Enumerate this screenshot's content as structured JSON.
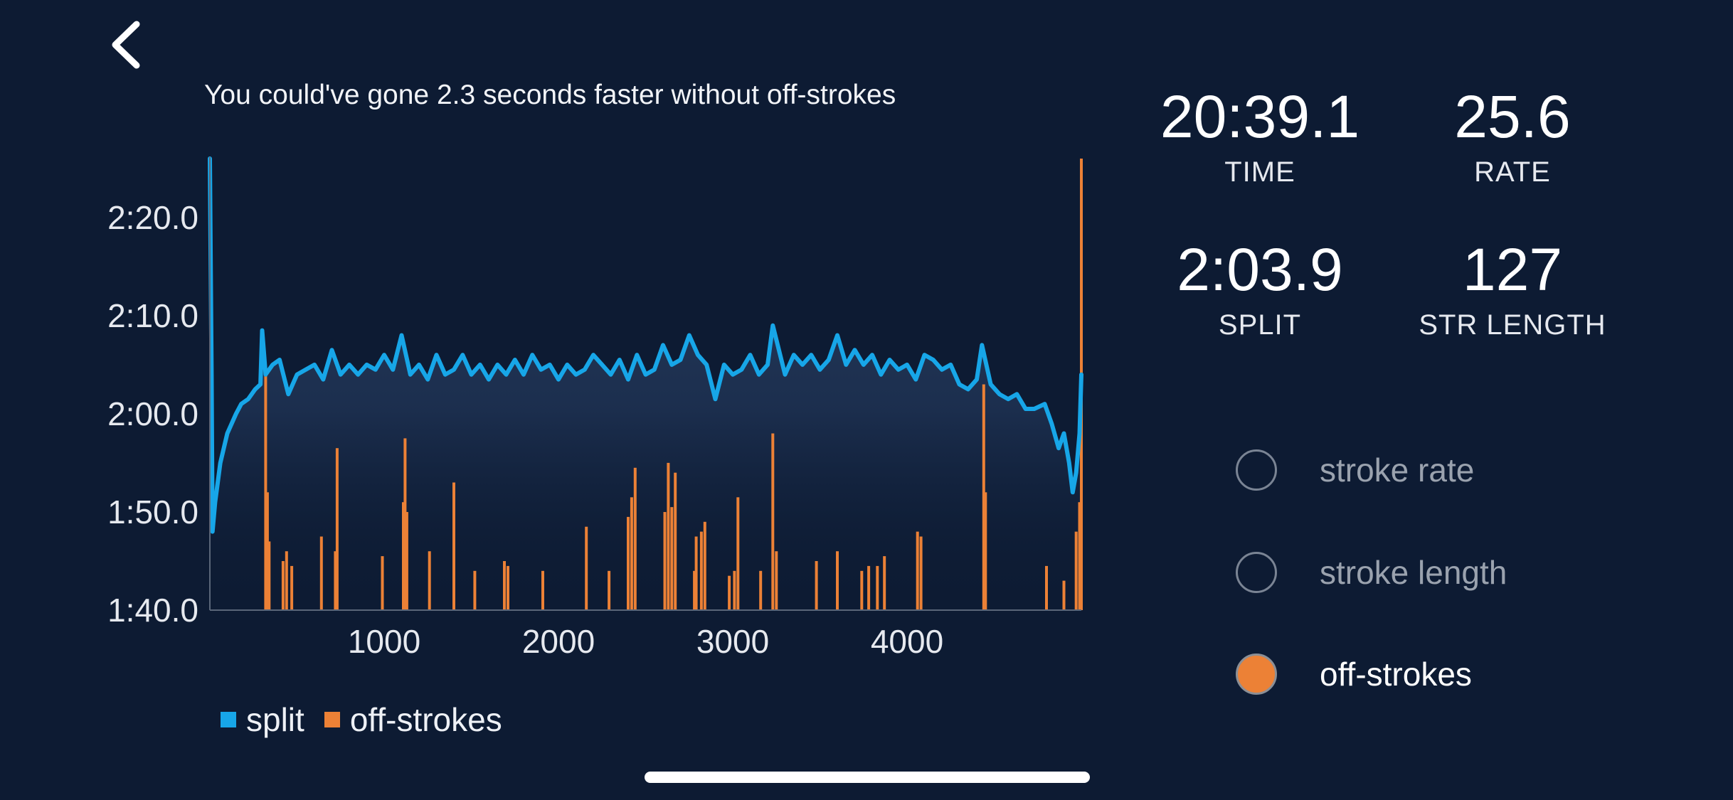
{
  "header": {
    "back_icon": "chevron-left-icon",
    "insight": "You could've gone 2.3 seconds faster without off-strokes"
  },
  "colors": {
    "background": "#0d1b33",
    "split": "#17a6e8",
    "off_strokes": "#ec8136"
  },
  "stats": {
    "time": {
      "value": "20:39.1",
      "label": "TIME"
    },
    "rate": {
      "value": "25.6",
      "label": "RATE"
    },
    "split": {
      "value": "2:03.9",
      "label": "SPLIT"
    },
    "str_length": {
      "value": "127",
      "label": "STR LENGTH"
    }
  },
  "toggles": [
    {
      "label": "stroke rate",
      "selected": false
    },
    {
      "label": "stroke length",
      "selected": false
    },
    {
      "label": "off-strokes",
      "selected": true
    }
  ],
  "chart_data": {
    "type": "line",
    "xlim": [
      0,
      5000
    ],
    "ylim": [
      100,
      146
    ],
    "x_ticks": [
      1000,
      2000,
      3000,
      4000
    ],
    "x_tick_labels": [
      "1000",
      "2000",
      "3000",
      "4000"
    ],
    "y_ticks": [
      100,
      110,
      120,
      130,
      140
    ],
    "y_tick_labels": [
      "1:40.0",
      "1:50.0",
      "2:00.0",
      "2:10.0",
      "2:20.0"
    ],
    "legend": [
      "split",
      "off-strokes"
    ],
    "series": [
      {
        "name": "split",
        "color": "#17a6e8",
        "points": [
          [
            0,
            146
          ],
          [
            10,
            124
          ],
          [
            15,
            108
          ],
          [
            30,
            111
          ],
          [
            60,
            115
          ],
          [
            100,
            118
          ],
          [
            150,
            120
          ],
          [
            180,
            121
          ],
          [
            220,
            121.5
          ],
          [
            260,
            122.5
          ],
          [
            290,
            123
          ],
          [
            300,
            128.5
          ],
          [
            320,
            124
          ],
          [
            360,
            125
          ],
          [
            400,
            125.5
          ],
          [
            450,
            122
          ],
          [
            500,
            124
          ],
          [
            550,
            124.5
          ],
          [
            600,
            125
          ],
          [
            650,
            123.5
          ],
          [
            700,
            126.5
          ],
          [
            750,
            124
          ],
          [
            800,
            125
          ],
          [
            850,
            124
          ],
          [
            900,
            125
          ],
          [
            950,
            124.5
          ],
          [
            1000,
            126
          ],
          [
            1050,
            124.5
          ],
          [
            1100,
            128
          ],
          [
            1150,
            124
          ],
          [
            1200,
            125
          ],
          [
            1250,
            123.5
          ],
          [
            1300,
            126
          ],
          [
            1350,
            124
          ],
          [
            1400,
            124.5
          ],
          [
            1450,
            126
          ],
          [
            1500,
            124
          ],
          [
            1550,
            125
          ],
          [
            1600,
            123.5
          ],
          [
            1650,
            125
          ],
          [
            1700,
            124
          ],
          [
            1750,
            125.5
          ],
          [
            1800,
            124
          ],
          [
            1850,
            126
          ],
          [
            1900,
            124.5
          ],
          [
            1950,
            125
          ],
          [
            2000,
            123.5
          ],
          [
            2050,
            125
          ],
          [
            2100,
            124
          ],
          [
            2150,
            124.5
          ],
          [
            2200,
            126
          ],
          [
            2250,
            125
          ],
          [
            2300,
            124
          ],
          [
            2350,
            125.5
          ],
          [
            2400,
            123.5
          ],
          [
            2450,
            126
          ],
          [
            2500,
            124
          ],
          [
            2550,
            124.5
          ],
          [
            2600,
            127
          ],
          [
            2650,
            125
          ],
          [
            2700,
            125.5
          ],
          [
            2750,
            128
          ],
          [
            2800,
            126
          ],
          [
            2850,
            125
          ],
          [
            2900,
            121.5
          ],
          [
            2950,
            125
          ],
          [
            3000,
            124
          ],
          [
            3050,
            124.5
          ],
          [
            3100,
            126
          ],
          [
            3150,
            124
          ],
          [
            3200,
            125
          ],
          [
            3230,
            129
          ],
          [
            3300,
            124
          ],
          [
            3350,
            126
          ],
          [
            3400,
            125
          ],
          [
            3450,
            126
          ],
          [
            3500,
            124.5
          ],
          [
            3550,
            125.5
          ],
          [
            3600,
            128
          ],
          [
            3650,
            125
          ],
          [
            3700,
            126.5
          ],
          [
            3750,
            125
          ],
          [
            3800,
            126
          ],
          [
            3850,
            124
          ],
          [
            3900,
            125.5
          ],
          [
            3950,
            124.5
          ],
          [
            4000,
            125
          ],
          [
            4050,
            123.5
          ],
          [
            4100,
            126
          ],
          [
            4150,
            125.5
          ],
          [
            4200,
            124.5
          ],
          [
            4250,
            125
          ],
          [
            4300,
            123
          ],
          [
            4350,
            122.5
          ],
          [
            4400,
            123.5
          ],
          [
            4430,
            127
          ],
          [
            4480,
            123
          ],
          [
            4530,
            122
          ],
          [
            4580,
            121.5
          ],
          [
            4630,
            122
          ],
          [
            4680,
            120.5
          ],
          [
            4730,
            120.5
          ],
          [
            4790,
            121
          ],
          [
            4830,
            119
          ],
          [
            4870,
            116.5
          ],
          [
            4900,
            118
          ],
          [
            4930,
            115
          ],
          [
            4950,
            112
          ],
          [
            4970,
            114
          ],
          [
            4990,
            118
          ],
          [
            5000,
            124
          ]
        ]
      },
      {
        "name": "off-strokes",
        "color": "#ec8136",
        "type": "bar",
        "points": [
          [
            320,
            124
          ],
          [
            330,
            112
          ],
          [
            340,
            107
          ],
          [
            420,
            105
          ],
          [
            440,
            106
          ],
          [
            470,
            104.5
          ],
          [
            640,
            107.5
          ],
          [
            720,
            106
          ],
          [
            730,
            116.5
          ],
          [
            990,
            105.5
          ],
          [
            1110,
            111
          ],
          [
            1120,
            117.5
          ],
          [
            1130,
            110
          ],
          [
            1260,
            106
          ],
          [
            1400,
            113
          ],
          [
            1520,
            104
          ],
          [
            1690,
            105
          ],
          [
            1710,
            104.5
          ],
          [
            1910,
            104
          ],
          [
            2160,
            108.5
          ],
          [
            2290,
            104
          ],
          [
            2400,
            109.5
          ],
          [
            2420,
            111.5
          ],
          [
            2440,
            114.5
          ],
          [
            2610,
            110
          ],
          [
            2630,
            115
          ],
          [
            2650,
            110.5
          ],
          [
            2670,
            114
          ],
          [
            2780,
            104
          ],
          [
            2790,
            107.5
          ],
          [
            2820,
            108
          ],
          [
            2840,
            109
          ],
          [
            2980,
            103.5
          ],
          [
            3010,
            104
          ],
          [
            3030,
            111.5
          ],
          [
            3160,
            104
          ],
          [
            3230,
            118
          ],
          [
            3250,
            106
          ],
          [
            3480,
            105
          ],
          [
            3600,
            106
          ],
          [
            3740,
            104
          ],
          [
            3780,
            104.5
          ],
          [
            3830,
            104.5
          ],
          [
            3870,
            105.5
          ],
          [
            4060,
            108
          ],
          [
            4080,
            107.5
          ],
          [
            4440,
            123
          ],
          [
            4450,
            112
          ],
          [
            4800,
            104.5
          ],
          [
            4900,
            103
          ],
          [
            4970,
            108
          ],
          [
            4990,
            111
          ],
          [
            5000,
            146
          ]
        ]
      }
    ]
  }
}
